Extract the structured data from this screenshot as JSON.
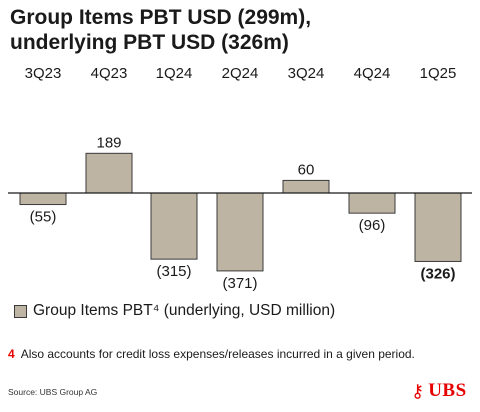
{
  "title": {
    "line1": "Group Items PBT USD (299m),",
    "line2": "underlying PBT USD (326m)"
  },
  "chart_data": {
    "type": "bar",
    "categories": [
      "3Q23",
      "4Q23",
      "1Q24",
      "2Q24",
      "3Q24",
      "4Q24",
      "1Q25"
    ],
    "values": [
      -55,
      189,
      -315,
      -371,
      60,
      -96,
      -326
    ],
    "data_labels": [
      "(55)",
      "189",
      "(315)",
      "(371)",
      "60",
      "(96)",
      "(326)"
    ],
    "bold_labels": [
      false,
      false,
      false,
      false,
      false,
      false,
      true
    ],
    "bar_color": "#bdb4a4",
    "edge_color": "#3a3a3a",
    "legend": "Group Items PBT⁴ (underlying, USD million)",
    "legend_position": "bottom-left",
    "grid": false
  },
  "footnote": {
    "number": "4",
    "text": "Also accounts for credit loss expenses/releases incurred in a given period."
  },
  "source": "Source: UBS Group AG",
  "logo": {
    "text": "UBS",
    "color": "#e60000",
    "icon": "ubs-keys-icon"
  }
}
